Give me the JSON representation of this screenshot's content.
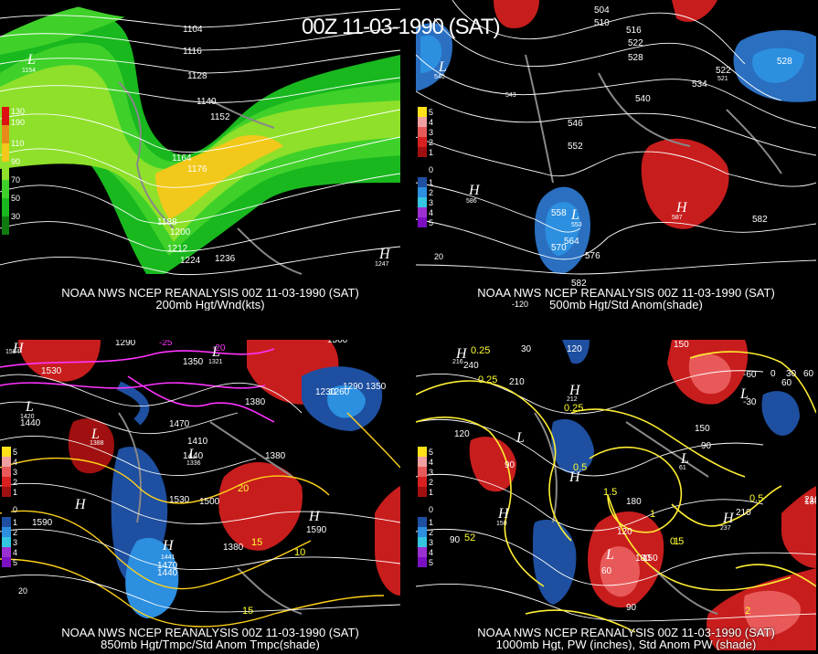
{
  "title": "00Z 11-03-1990 (SAT)",
  "panels": [
    {
      "id": "p1",
      "line1": "NOAA NWS NCEP REANALYSIS 00Z 11-03-1990 (SAT)",
      "line2": "200mb Hgt/Wnd(kts)",
      "legend": [
        "130",
        "190",
        "110",
        "90",
        "70",
        "50",
        "30"
      ],
      "labels": [
        "1104",
        "1116",
        "1128",
        "1140",
        "1152",
        "1164",
        "1176",
        "1188",
        "1200",
        "1212",
        "1224",
        "1236",
        "1154",
        "1247"
      ],
      "highs": [
        "H"
      ],
      "lows": [
        "L"
      ]
    },
    {
      "id": "p2",
      "line1": "NOAA NWS NCEP REANALYSIS 00Z 11-03-1990 (SAT)",
      "line2": "500mb Hgt/Std Anom(shade)",
      "legend": [
        "5",
        "4",
        "3",
        "2",
        "1",
        "0",
        "1",
        "2",
        "3",
        "4",
        "5"
      ],
      "labels": [
        "504",
        "510",
        "516",
        "522",
        "528",
        "528",
        "522",
        "534",
        "540",
        "546",
        "552",
        "558",
        "564",
        "570",
        "576",
        "582",
        "553",
        "586",
        "587",
        "582",
        "540",
        "543",
        "521",
        "20",
        "-120"
      ],
      "highs": [
        "H",
        "H"
      ],
      "lows": [
        "L",
        "L"
      ]
    },
    {
      "id": "p3",
      "line1": "NOAA NWS NCEP REANALYSIS 00Z 11-03-1990 (SAT)",
      "line2": "850mb Hgt/Tmpc/Std Anom Tmpc(shade)",
      "legend": [
        "5",
        "4",
        "3",
        "2",
        "1",
        "0",
        "1",
        "2",
        "3",
        "4",
        "5"
      ],
      "labels": [
        "1290",
        "1350",
        "1500",
        "1530",
        "1440",
        "1410",
        "1380",
        "1470",
        "1440",
        "1500",
        "1530",
        "1590",
        "1590",
        "1380",
        "1230",
        "1260",
        "1290",
        "1350",
        "1380",
        "1470",
        "1440",
        "1420",
        "1321",
        "1336",
        "1584",
        "15",
        "10",
        "15",
        "20",
        "-20",
        "-25",
        "20",
        "1388",
        "1441"
      ],
      "highs": [
        "H",
        "H",
        "H",
        "H"
      ],
      "lows": [
        "L",
        "L",
        "L",
        "L"
      ]
    },
    {
      "id": "p4",
      "line1": "NOAA NWS NCEP REANALYSIS 00Z 11-03-1990 (SAT)",
      "line2": "1000mb Hgt, PW (inches), Std Anom PW (shade)",
      "legend": [
        "5",
        "4",
        "3",
        "2",
        "1",
        "0",
        "1",
        "2",
        "3",
        "4",
        "5"
      ],
      "labels": [
        "120",
        "150",
        "240",
        "210",
        "30",
        "60",
        "90",
        "120",
        "150",
        "180",
        "210",
        "60",
        "90",
        "150",
        "180",
        "120",
        "30",
        "0",
        "60",
        "0.25",
        "0.5",
        "0.5",
        "0.25",
        "0.5",
        "1",
        "1",
        "1.5",
        "2",
        "0.25",
        "-30",
        "-60",
        "90",
        "61",
        "90",
        "210",
        "180",
        "150",
        "237",
        "212",
        "216",
        "52",
        "1"
      ],
      "highs": [
        "H",
        "H",
        "H",
        "H",
        "H"
      ],
      "lows": [
        "L",
        "L",
        "L",
        "L"
      ]
    }
  ]
}
